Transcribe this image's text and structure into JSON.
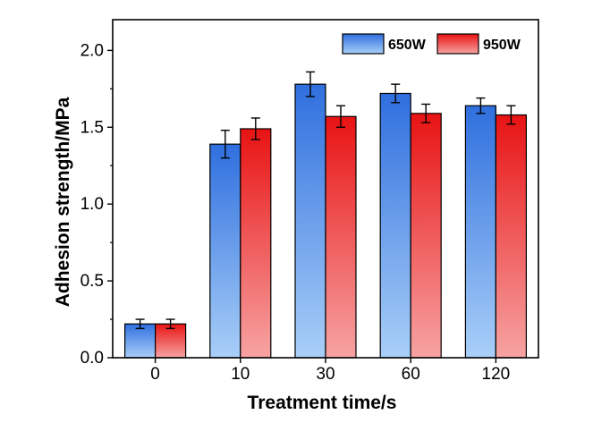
{
  "chart_data": {
    "type": "bar",
    "title": "",
    "xlabel": "Treatment time/s",
    "ylabel": "Adhesion strength/MPa",
    "categories": [
      "0",
      "10",
      "30",
      "60",
      "120"
    ],
    "ylim": [
      0,
      2.2
    ],
    "yticks": [
      0.0,
      0.5,
      1.0,
      1.5,
      2.0
    ],
    "ytick_labels": [
      "0.0",
      "0.5",
      "1.0",
      "1.5",
      "2.0"
    ],
    "grid": false,
    "legend_position": "top-right",
    "series": [
      {
        "name": "650W",
        "values": [
          0.22,
          1.39,
          1.78,
          1.72,
          1.64
        ],
        "errors": [
          0.03,
          0.09,
          0.08,
          0.06,
          0.05
        ],
        "color_top": "#2f6fde",
        "color_bottom": "#a9cff8"
      },
      {
        "name": "950W",
        "values": [
          0.22,
          1.49,
          1.57,
          1.59,
          1.58
        ],
        "errors": [
          0.03,
          0.07,
          0.07,
          0.06,
          0.06
        ],
        "color_top": "#e81313",
        "color_bottom": "#f7a3a3"
      }
    ]
  }
}
